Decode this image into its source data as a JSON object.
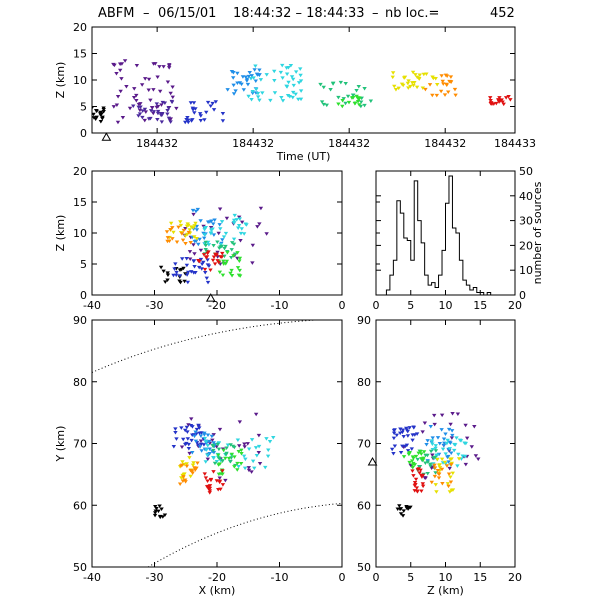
{
  "title": {
    "prefix": "ABFM",
    "date": "06/15/01",
    "time_range": "18:44:32 – 18:44:33",
    "count_label": "nb loc.=",
    "count": "452"
  },
  "chart_data": [
    {
      "id": "time-height",
      "type": "scatter",
      "xlabel": "Time (UT)",
      "ylabel": "Z (km)",
      "xlim": [
        0,
        1
      ],
      "ylim": [
        0,
        20
      ],
      "x_ticks": [
        {
          "v": 0.154,
          "label": "184432"
        },
        {
          "v": 0.381,
          "label": "184432"
        },
        {
          "v": 0.608,
          "label": "184432"
        },
        {
          "v": 0.835,
          "label": "184432"
        },
        {
          "v": 1.0,
          "label": "184433"
        }
      ],
      "y_ticks": [
        0,
        5,
        10,
        15,
        20
      ],
      "station_marker": {
        "x": 0.034,
        "y": -0.8,
        "symbol": "triangle"
      },
      "clusters": [
        {
          "color": "#000000",
          "x": [
            0.0,
            0.03
          ],
          "y": [
            2,
            5
          ],
          "n": 18
        },
        {
          "color": "#5a1a8a",
          "x": [
            0.05,
            0.2
          ],
          "y": [
            2,
            14
          ],
          "n": 55
        },
        {
          "color": "#4b2a9e",
          "x": [
            0.09,
            0.19
          ],
          "y": [
            2,
            6
          ],
          "n": 30
        },
        {
          "color": "#2433c8",
          "x": [
            0.22,
            0.31
          ],
          "y": [
            2,
            6
          ],
          "n": 25
        },
        {
          "color": "#1f8ee8",
          "x": [
            0.3,
            0.4
          ],
          "y": [
            7,
            12
          ],
          "n": 30
        },
        {
          "color": "#2fd6e0",
          "x": [
            0.37,
            0.5
          ],
          "y": [
            6,
            13
          ],
          "n": 45
        },
        {
          "color": "#22c27a",
          "x": [
            0.54,
            0.66
          ],
          "y": [
            5,
            10
          ],
          "n": 25
        },
        {
          "color": "#2ee02e",
          "x": [
            0.58,
            0.64
          ],
          "y": [
            5,
            7
          ],
          "n": 15
        },
        {
          "color": "#e6e000",
          "x": [
            0.7,
            0.82
          ],
          "y": [
            8,
            12
          ],
          "n": 30
        },
        {
          "color": "#ff8c00",
          "x": [
            0.78,
            0.86
          ],
          "y": [
            7,
            11
          ],
          "n": 20
        },
        {
          "color": "#e01010",
          "x": [
            0.94,
            0.99
          ],
          "y": [
            5,
            7
          ],
          "n": 20
        }
      ]
    },
    {
      "id": "x-height",
      "type": "scatter",
      "xlabel": "",
      "ylabel": "Z (km)",
      "xlim": [
        -40,
        0
      ],
      "ylim": [
        0,
        20
      ],
      "x_ticks": [
        -40,
        -30,
        -20,
        -10,
        0
      ],
      "y_ticks": [
        0,
        5,
        10,
        15,
        20
      ],
      "station_marker": {
        "x": -21,
        "y": -0.5,
        "symbol": "triangle"
      },
      "clusters": [
        {
          "color": "#000000",
          "x": [
            -29,
            -25
          ],
          "y": [
            2,
            5
          ],
          "n": 15
        },
        {
          "color": "#5a1a8a",
          "x": [
            -26,
            -12
          ],
          "y": [
            5,
            14
          ],
          "n": 30
        },
        {
          "color": "#2433c8",
          "x": [
            -27,
            -21
          ],
          "y": [
            2,
            6
          ],
          "n": 30
        },
        {
          "color": "#1f8ee8",
          "x": [
            -24,
            -19
          ],
          "y": [
            8,
            14
          ],
          "n": 25
        },
        {
          "color": "#2fd6e0",
          "x": [
            -22,
            -15
          ],
          "y": [
            8,
            13
          ],
          "n": 30
        },
        {
          "color": "#22c27a",
          "x": [
            -22,
            -17
          ],
          "y": [
            6,
            9
          ],
          "n": 20
        },
        {
          "color": "#2ee02e",
          "x": [
            -20,
            -16
          ],
          "y": [
            3,
            7
          ],
          "n": 20
        },
        {
          "color": "#e6e000",
          "x": [
            -28,
            -23
          ],
          "y": [
            9,
            12
          ],
          "n": 20
        },
        {
          "color": "#ff8c00",
          "x": [
            -28,
            -24
          ],
          "y": [
            8,
            11
          ],
          "n": 15
        },
        {
          "color": "#e01010",
          "x": [
            -23,
            -19
          ],
          "y": [
            4,
            7
          ],
          "n": 20
        }
      ]
    },
    {
      "id": "height-histogram",
      "type": "bar",
      "xlabel": "",
      "ylabel": "number of sources",
      "xlim": [
        0,
        20
      ],
      "ylim": [
        0,
        50
      ],
      "x_ticks": [
        0,
        5,
        10,
        15,
        20
      ],
      "y_ticks": [
        0,
        10,
        20,
        30,
        40,
        50
      ],
      "bin_width": 0.5,
      "bin_start": 1.5,
      "values": [
        2,
        8,
        14,
        38,
        33,
        23,
        22,
        14,
        46,
        30,
        21,
        8,
        4,
        5,
        3,
        8,
        18,
        37,
        48,
        27,
        25,
        14,
        6,
        4,
        2,
        3,
        1,
        1,
        0,
        1
      ]
    },
    {
      "id": "plan-view",
      "type": "scatter",
      "xlabel": "X (km)",
      "ylabel": "Y (km)",
      "xlim": [
        -40,
        0
      ],
      "ylim": [
        50,
        90
      ],
      "x_ticks": [
        -40,
        -30,
        -20,
        -10,
        0
      ],
      "y_ticks": [
        50,
        60,
        70,
        80,
        90
      ],
      "clusters": [
        {
          "color": "#000000",
          "x": [
            -30,
            -28
          ],
          "y": [
            58,
            60
          ],
          "n": 12
        },
        {
          "color": "#5a1a8a",
          "x": [
            -26,
            -13
          ],
          "y": [
            64,
            75
          ],
          "n": 30
        },
        {
          "color": "#2433c8",
          "x": [
            -27,
            -22
          ],
          "y": [
            69,
            73
          ],
          "n": 30
        },
        {
          "color": "#1f8ee8",
          "x": [
            -24,
            -20
          ],
          "y": [
            68,
            72
          ],
          "n": 25
        },
        {
          "color": "#2fd6e0",
          "x": [
            -22,
            -11
          ],
          "y": [
            66,
            71
          ],
          "n": 35
        },
        {
          "color": "#22c27a",
          "x": [
            -21,
            -17
          ],
          "y": [
            66,
            70
          ],
          "n": 20
        },
        {
          "color": "#2ee02e",
          "x": [
            -20,
            -16
          ],
          "y": [
            65,
            69
          ],
          "n": 20
        },
        {
          "color": "#e6e000",
          "x": [
            -26,
            -23
          ],
          "y": [
            64,
            68
          ],
          "n": 15
        },
        {
          "color": "#ff8c00",
          "x": [
            -26,
            -23
          ],
          "y": [
            63,
            67
          ],
          "n": 15
        },
        {
          "color": "#e01010",
          "x": [
            -22,
            -19
          ],
          "y": [
            62,
            66
          ],
          "n": 20
        }
      ],
      "range_rings": "dotted"
    },
    {
      "id": "height-y",
      "type": "scatter",
      "xlabel": "Z (km)",
      "ylabel": "",
      "xlim": [
        0,
        20
      ],
      "ylim": [
        50,
        90
      ],
      "x_ticks": [
        0,
        5,
        10,
        15,
        20
      ],
      "y_ticks": [
        50,
        60,
        70,
        80,
        90
      ],
      "station_marker": {
        "x": -0.5,
        "y": 67,
        "symbol": "triangle"
      },
      "clusters": [
        {
          "color": "#000000",
          "x": [
            3,
            5
          ],
          "y": [
            58,
            60
          ],
          "n": 12
        },
        {
          "color": "#5a1a8a",
          "x": [
            4,
            15
          ],
          "y": [
            64,
            75
          ],
          "n": 30
        },
        {
          "color": "#2433c8",
          "x": [
            2,
            6
          ],
          "y": [
            68,
            73
          ],
          "n": 30
        },
        {
          "color": "#1f8ee8",
          "x": [
            7,
            11
          ],
          "y": [
            67,
            73
          ],
          "n": 25
        },
        {
          "color": "#2fd6e0",
          "x": [
            8,
            13
          ],
          "y": [
            66,
            71
          ],
          "n": 30
        },
        {
          "color": "#22c27a",
          "x": [
            6,
            9
          ],
          "y": [
            65,
            69
          ],
          "n": 20
        },
        {
          "color": "#2ee02e",
          "x": [
            4,
            7
          ],
          "y": [
            66,
            69
          ],
          "n": 20
        },
        {
          "color": "#e6e000",
          "x": [
            8,
            12
          ],
          "y": [
            62,
            68
          ],
          "n": 20
        },
        {
          "color": "#ff8c00",
          "x": [
            8,
            11
          ],
          "y": [
            63,
            67
          ],
          "n": 15
        },
        {
          "color": "#e01010",
          "x": [
            5,
            7
          ],
          "y": [
            62,
            66
          ],
          "n": 20
        }
      ]
    }
  ]
}
